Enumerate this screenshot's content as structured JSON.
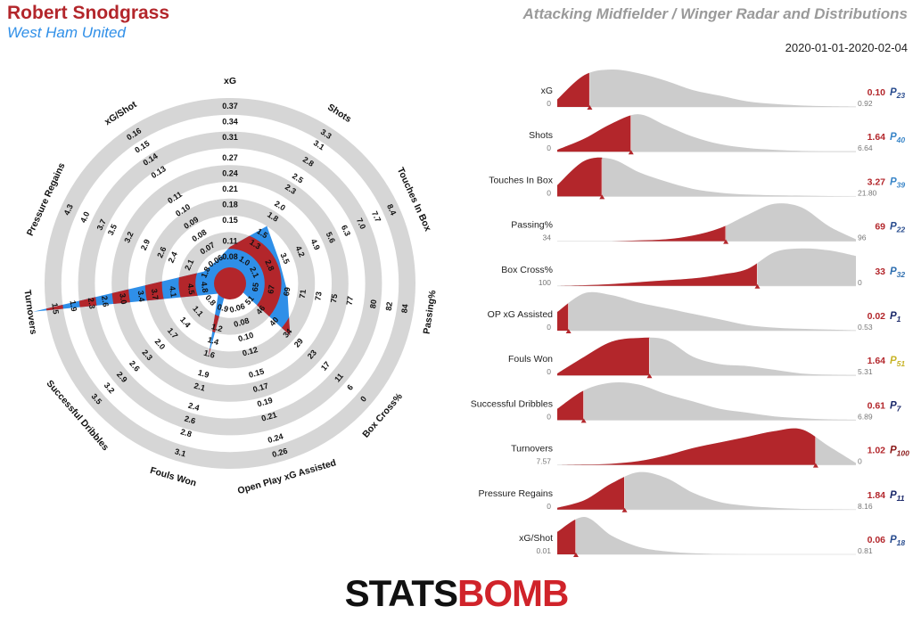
{
  "header": {
    "name": "Robert Snodgrass",
    "team": "West Ham United",
    "title": "Attacking Midfielder / Winger Radar and Distributions",
    "date": "2020-01-01-2020-02-04"
  },
  "chart_data": [
    {
      "type": "radar",
      "color": "#b3262b",
      "alt_color": "#2f8fe8",
      "ring_color": "#d6d6d6",
      "axes": [
        {
          "name": "xG",
          "value": 0.1,
          "ticks": [
            0.08,
            0.11,
            0.15,
            0.18,
            0.21,
            0.24,
            0.27,
            0.31,
            0.34,
            0.37
          ]
        },
        {
          "name": "Shots",
          "value": 1.64,
          "ticks": [
            {
              "value": 1,
              "label": "1.0"
            },
            1.3,
            1.5,
            1.8,
            {
              "value": 2,
              "label": "2.0"
            },
            2.3,
            2.5,
            2.8,
            3.1,
            3.3
          ]
        },
        {
          "name": "Touches In Box",
          "value": 3.27,
          "ticks": [
            2.1,
            2.8,
            3.5,
            4.2,
            4.9,
            5.6,
            6.3,
            {
              "value": 7,
              "label": "7.0"
            },
            7.7,
            8.4
          ]
        },
        {
          "name": "Passing%",
          "value": 69,
          "ticks": [
            65,
            67,
            69,
            71,
            73,
            75,
            77,
            80,
            82,
            84
          ]
        },
        {
          "name": "Box Cross%",
          "value": 33,
          "ticks": [
            51,
            46,
            40,
            34,
            29,
            23,
            17,
            11,
            6,
            0
          ]
        },
        {
          "name": "Open Play xG Assisted",
          "value": 0.02,
          "ticks": [
            0.06,
            0.08,
            {
              "value": 0.1,
              "label": "0.10"
            },
            0.12,
            0.15,
            0.17,
            0.19,
            0.21,
            0.24,
            0.26
          ]
        },
        {
          "name": "Fouls Won",
          "value": 1.64,
          "ticks": [
            0.9,
            1.2,
            1.4,
            1.6,
            1.9,
            2.1,
            2.4,
            2.6,
            2.8,
            3.1
          ]
        },
        {
          "name": "Successful Dribbles",
          "value": 0.61,
          "ticks": [
            0.8,
            1.1,
            1.4,
            1.7,
            {
              "value": 2,
              "label": "2.0"
            },
            2.3,
            2.6,
            2.9,
            3.2,
            3.5
          ]
        },
        {
          "name": "Turnovers",
          "value": 1.02,
          "ticks": [
            4.8,
            4.5,
            4.1,
            3.7,
            3.4,
            {
              "value": 3,
              "label": "3.0"
            },
            2.6,
            2.3,
            1.9,
            1.5
          ]
        },
        {
          "name": "Pressure Regains",
          "value": 1.84,
          "ticks": [
            1.8,
            2.1,
            2.4,
            2.6,
            2.9,
            3.2,
            3.5,
            3.7,
            {
              "value": 4,
              "label": "4.0"
            },
            4.3
          ]
        },
        {
          "name": "xG/Shot",
          "value": 0.06,
          "ticks": [
            0.06,
            0.07,
            0.08,
            0.09,
            {
              "value": 0.1,
              "label": "0.10"
            },
            0.11,
            0.13,
            0.14,
            0.15,
            0.16
          ]
        }
      ]
    },
    {
      "type": "distribution",
      "color": "#b3262b",
      "rest_color": "#cccccc",
      "rows": [
        {
          "name": "xG",
          "value": 0.1,
          "value_label": "0.10",
          "xlim": [
            0,
            0.92
          ],
          "percentile": "P23",
          "percentile_color": "#2a4d8f",
          "density": [
            0.2,
            0.85,
            1.0,
            0.9,
            0.7,
            0.45,
            0.3,
            0.15,
            0.08,
            0.04,
            0.02,
            0.01
          ]
        },
        {
          "name": "Shots",
          "value": 1.64,
          "xlim": [
            0,
            6.64
          ],
          "percentile": "P40",
          "percentile_color": "#3a86c8",
          "density": [
            0.05,
            0.35,
            0.75,
            1.0,
            0.7,
            0.4,
            0.2,
            0.1,
            0.05,
            0.02,
            0.01,
            0.01
          ]
        },
        {
          "name": "Touches In Box",
          "value": 3.27,
          "xlim": [
            0,
            {
              "value": 21.8,
              "label": "21.80"
            }
          ],
          "percentile": "P39",
          "percentile_color": "#3a86c8",
          "density": [
            0.3,
            0.95,
            1.0,
            0.65,
            0.4,
            0.2,
            0.1,
            0.05,
            0.03,
            0.02,
            0.01,
            0
          ]
        },
        {
          "name": "Passing%",
          "value": 69,
          "xlim": [
            34,
            96
          ],
          "percentile": "P22",
          "percentile_color": "#2a4d8f",
          "density": [
            0,
            0,
            0,
            0.02,
            0.05,
            0.15,
            0.35,
            0.7,
            1.0,
            0.9,
            0.4,
            0.05
          ]
        },
        {
          "name": "Box Cross%",
          "value": 33,
          "xlim": [
            100,
            0
          ],
          "percentile": "P32",
          "percentile_color": "#2f6fb0",
          "density": [
            0,
            0.02,
            0.05,
            0.1,
            0.15,
            0.2,
            0.3,
            0.45,
            0.9,
            1.0,
            0.95,
            0.8
          ]
        },
        {
          "name": "OP xG Assisted",
          "value": 0.02,
          "xlim": [
            0,
            0.53
          ],
          "percentile": "P1",
          "percentile_color": "#1c2a6b",
          "density": [
            0.5,
            1.0,
            0.95,
            0.75,
            0.6,
            0.45,
            0.3,
            0.15,
            0.08,
            0.05,
            0.03,
            0.01
          ]
        },
        {
          "name": "Fouls Won",
          "value": 1.64,
          "xlim": [
            0,
            5.31
          ],
          "percentile": "P51",
          "percentile_color": "#c8b428",
          "density": [
            0.05,
            0.5,
            0.9,
            1.0,
            0.95,
            0.5,
            0.3,
            0.25,
            0.15,
            0.05,
            0.02,
            0.01
          ]
        },
        {
          "name": "Successful Dribbles",
          "value": 0.61,
          "xlim": [
            0,
            6.89
          ],
          "percentile": "P7",
          "percentile_color": "#1c2a6b",
          "density": [
            0.3,
            0.8,
            1.0,
            0.95,
            0.7,
            0.5,
            0.3,
            0.2,
            0.1,
            0.05,
            0.02,
            0.01
          ]
        },
        {
          "name": "Turnovers",
          "value": 1.02,
          "xlim": [
            7.57,
            0
          ],
          "percentile": "P100",
          "percentile_color": "#8b1a1a",
          "density": [
            0,
            0.01,
            0.03,
            0.1,
            0.25,
            0.45,
            0.6,
            0.75,
            0.9,
            0.95,
            0.5,
            0.05
          ]
        },
        {
          "name": "Pressure Regains",
          "value": 1.84,
          "xlim": [
            0,
            8.16
          ],
          "percentile": "P11",
          "percentile_color": "#1c2a6b",
          "density": [
            0.05,
            0.25,
            0.7,
            1.0,
            0.85,
            0.45,
            0.2,
            0.1,
            0.05,
            0.02,
            0.01,
            0
          ]
        },
        {
          "name": "xG/Shot",
          "value": 0.06,
          "xlim": [
            0.01,
            0.81
          ],
          "percentile": "P18",
          "percentile_color": "#2a4d8f",
          "density": [
            0.6,
            1.0,
            0.5,
            0.2,
            0.08,
            0.03,
            0.01,
            0,
            0,
            0,
            0,
            0
          ]
        }
      ]
    }
  ],
  "logo": [
    "STATS",
    "BOMB"
  ]
}
